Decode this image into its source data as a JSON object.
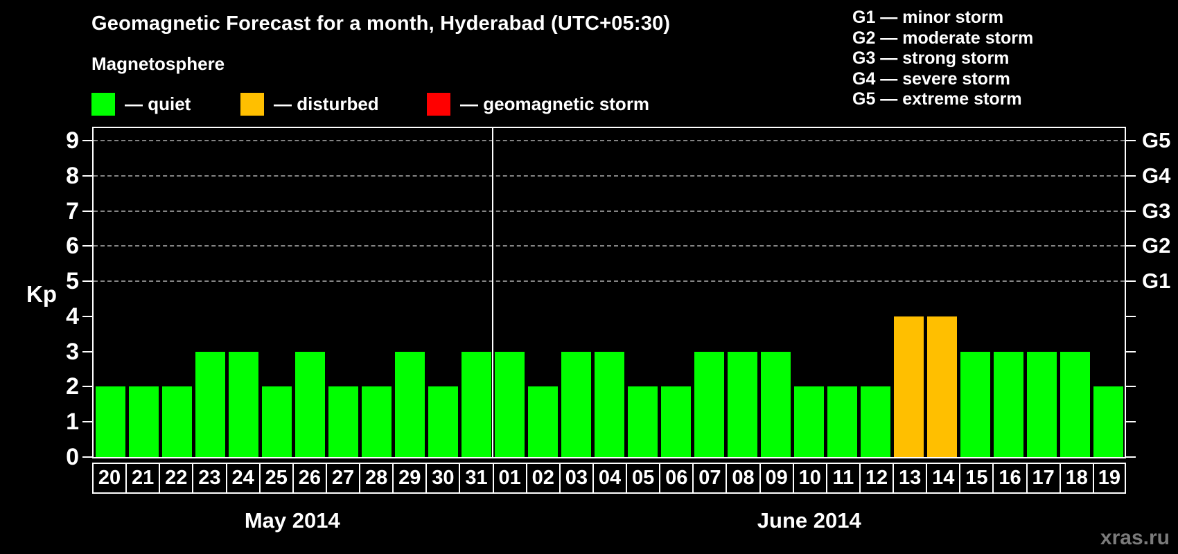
{
  "title": "Geomagnetic Forecast for a month, Hyderabad (UTC+05:30)",
  "legend": {
    "heading": "Magnetosphere",
    "items": [
      {
        "name": "quiet",
        "label": "— quiet",
        "color": "#00ff00"
      },
      {
        "name": "disturbed",
        "label": "— disturbed",
        "color": "#ffbf00"
      },
      {
        "name": "geomagnetic-storm",
        "label": "— geomagnetic storm",
        "color": "#ff0000"
      }
    ]
  },
  "storm_scale_legend": [
    "G1 — minor storm",
    "G2 — moderate storm",
    "G3 — strong storm",
    "G4 — severe storm",
    "G5 — extreme storm"
  ],
  "watermark": "xras.ru",
  "chart_data": {
    "type": "bar",
    "title": "Geomagnetic Forecast for a month, Hyderabad (UTC+05:30)",
    "xlabel": "",
    "ylabel": "Kp",
    "ylim": [
      0,
      9.35
    ],
    "y_ticks": [
      0,
      1,
      2,
      3,
      4,
      5,
      6,
      7,
      8,
      9
    ],
    "gridlines_at": [
      5,
      6,
      7,
      8,
      9
    ],
    "grid_style": "dashed-horizontal",
    "legend_position": "top-left",
    "right_axis_labels": [
      {
        "kp": 5,
        "label": "G1"
      },
      {
        "kp": 6,
        "label": "G2"
      },
      {
        "kp": 7,
        "label": "G3"
      },
      {
        "kp": 8,
        "label": "G4"
      },
      {
        "kp": 9,
        "label": "G5"
      }
    ],
    "categories": [
      "20",
      "21",
      "22",
      "23",
      "24",
      "25",
      "26",
      "27",
      "28",
      "29",
      "30",
      "31",
      "01",
      "02",
      "03",
      "04",
      "05",
      "06",
      "07",
      "08",
      "09",
      "10",
      "11",
      "12",
      "13",
      "14",
      "15",
      "16",
      "17",
      "18",
      "19"
    ],
    "series": [
      {
        "name": "Kp forecast",
        "values": [
          2,
          2,
          2,
          3,
          3,
          2,
          3,
          2,
          2,
          3,
          2,
          3,
          3,
          2,
          3,
          3,
          2,
          2,
          3,
          3,
          3,
          2,
          2,
          2,
          4,
          4,
          3,
          3,
          3,
          3,
          2
        ]
      }
    ],
    "bar_status": [
      "quiet",
      "quiet",
      "quiet",
      "quiet",
      "quiet",
      "quiet",
      "quiet",
      "quiet",
      "quiet",
      "quiet",
      "quiet",
      "quiet",
      "quiet",
      "quiet",
      "quiet",
      "quiet",
      "quiet",
      "quiet",
      "quiet",
      "quiet",
      "quiet",
      "quiet",
      "quiet",
      "quiet",
      "disturbed",
      "disturbed",
      "quiet",
      "quiet",
      "quiet",
      "quiet",
      "quiet"
    ],
    "status_colors": {
      "quiet": "#00ff00",
      "disturbed": "#ffbf00",
      "geomagnetic-storm": "#ff0000"
    },
    "months": [
      {
        "label": "May 2014",
        "start_index": 0,
        "days": 12
      },
      {
        "label": "June 2014",
        "start_index": 12,
        "days": 19
      }
    ]
  }
}
